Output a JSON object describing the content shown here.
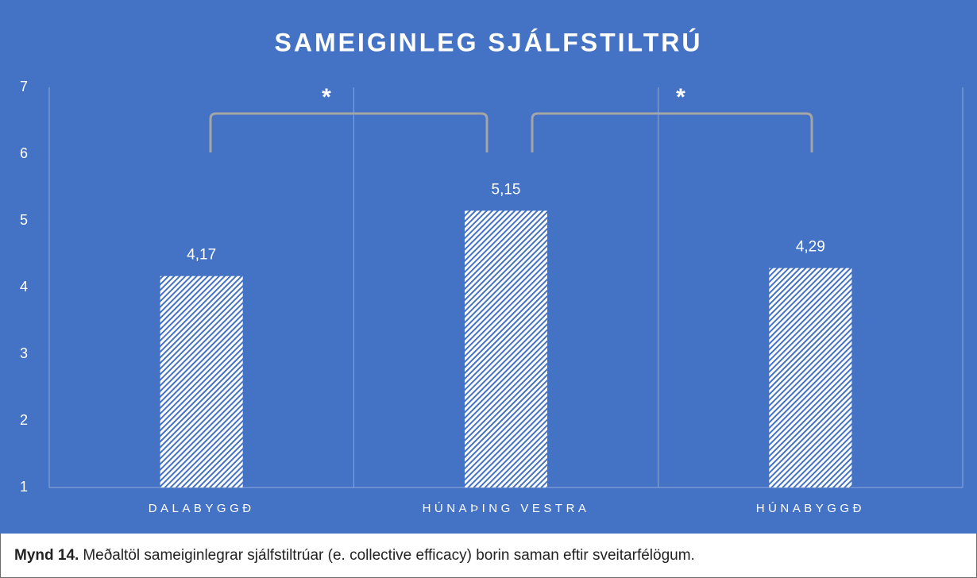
{
  "chart_data": {
    "type": "bar",
    "title": "SAMEIGINLEG SJÁLFSTILTRÚ",
    "categories": [
      "DALABYGGÐ",
      "HÚNAÞING VESTRA",
      "HÚNABYGGÐ"
    ],
    "values": [
      4.17,
      5.15,
      4.29
    ],
    "value_labels": [
      "4,17",
      "5,15",
      "4,29"
    ],
    "color": "#ffffff",
    "ylim": [
      1,
      7
    ],
    "yticks": [
      1,
      2,
      3,
      4,
      5,
      6,
      7
    ],
    "annotations": [
      "*",
      "*"
    ]
  },
  "caption": {
    "label": "Mynd 14.",
    "text": "Meðaltöl sameiginlegrar sjálfstiltrúar (e. collective efficacy) borin saman eftir sveitarfélögum."
  }
}
